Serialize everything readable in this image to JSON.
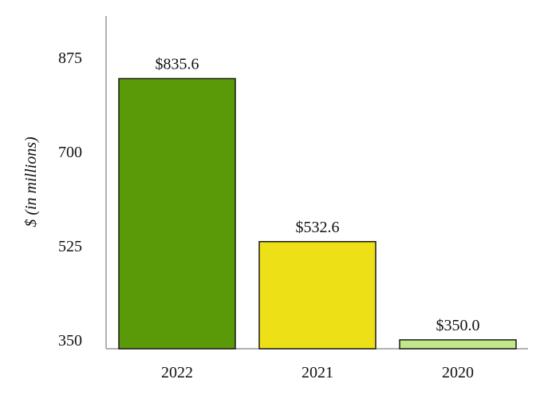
{
  "chart_data": {
    "type": "bar",
    "categories": [
      "2022",
      "2021",
      "2020"
    ],
    "values": [
      835.6,
      532.6,
      350.0
    ],
    "data_labels": [
      "$835.6",
      "$532.6",
      "$350.0"
    ],
    "colors": [
      "#5a9a08",
      "#ede017",
      "#c2e68a"
    ],
    "bar_stroke": "#1a1a1a",
    "title": "",
    "xlabel": "",
    "ylabel": "$ (in millions)",
    "yticks": [
      350,
      525,
      700,
      875
    ],
    "ytick_labels": [
      "350",
      "525",
      "700",
      "875"
    ],
    "ylim": [
      333.5,
      952
    ],
    "grid": false,
    "legend": "none"
  }
}
